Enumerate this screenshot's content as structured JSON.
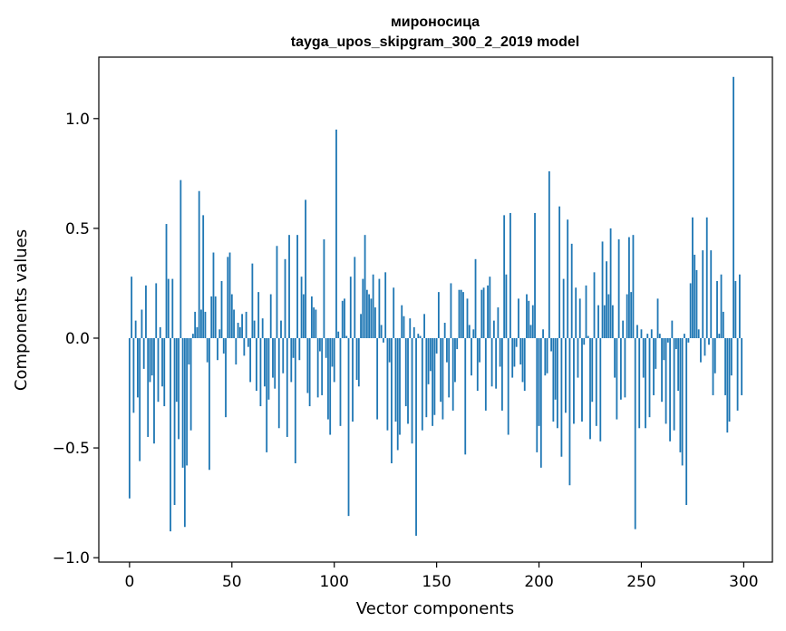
{
  "chart_data": {
    "type": "bar",
    "title": "мироносица",
    "subtitle": "tayga_upos_skipgram_300_2_2019 model",
    "xlabel": "Vector components",
    "ylabel": "Components values",
    "xlim": [
      -15,
      314
    ],
    "ylim": [
      -1.02,
      1.28
    ],
    "xticks": [
      0,
      50,
      100,
      150,
      200,
      250,
      300
    ],
    "yticks": [
      -1.0,
      -0.5,
      0.0,
      0.5,
      1.0
    ],
    "ytick_labels": [
      "−1.0",
      "−0.5",
      "0.0",
      "0.5",
      "1.0"
    ],
    "bar_color": "#1f77b4",
    "grid": false,
    "legend": "none",
    "x": [
      0,
      1,
      2,
      3,
      4,
      5,
      6,
      7,
      8,
      9,
      10,
      11,
      12,
      13,
      14,
      15,
      16,
      17,
      18,
      19,
      20,
      21,
      22,
      23,
      24,
      25,
      26,
      27,
      28,
      29,
      30,
      31,
      32,
      33,
      34,
      35,
      36,
      37,
      38,
      39,
      40,
      41,
      42,
      43,
      44,
      45,
      46,
      47,
      48,
      49,
      50,
      51,
      52,
      53,
      54,
      55,
      56,
      57,
      58,
      59,
      60,
      61,
      62,
      63,
      64,
      65,
      66,
      67,
      68,
      69,
      70,
      71,
      72,
      73,
      74,
      75,
      76,
      77,
      78,
      79,
      80,
      81,
      82,
      83,
      84,
      85,
      86,
      87,
      88,
      89,
      90,
      91,
      92,
      93,
      94,
      95,
      96,
      97,
      98,
      99,
      100,
      101,
      102,
      103,
      104,
      105,
      106,
      107,
      108,
      109,
      110,
      111,
      112,
      113,
      114,
      115,
      116,
      117,
      118,
      119,
      120,
      121,
      122,
      123,
      124,
      125,
      126,
      127,
      128,
      129,
      130,
      131,
      132,
      133,
      134,
      135,
      136,
      137,
      138,
      139,
      140,
      141,
      142,
      143,
      144,
      145,
      146,
      147,
      148,
      149,
      150,
      151,
      152,
      153,
      154,
      155,
      156,
      157,
      158,
      159,
      160,
      161,
      162,
      163,
      164,
      165,
      166,
      167,
      168,
      169,
      170,
      171,
      172,
      173,
      174,
      175,
      176,
      177,
      178,
      179,
      180,
      181,
      182,
      183,
      184,
      185,
      186,
      187,
      188,
      189,
      190,
      191,
      192,
      193,
      194,
      195,
      196,
      197,
      198,
      199,
      200,
      201,
      202,
      203,
      204,
      205,
      206,
      207,
      208,
      209,
      210,
      211,
      212,
      213,
      214,
      215,
      216,
      217,
      218,
      219,
      220,
      221,
      222,
      223,
      224,
      225,
      226,
      227,
      228,
      229,
      230,
      231,
      232,
      233,
      234,
      235,
      236,
      237,
      238,
      239,
      240,
      241,
      242,
      243,
      244,
      245,
      246,
      247,
      248,
      249,
      250,
      251,
      252,
      253,
      254,
      255,
      256,
      257,
      258,
      259,
      260,
      261,
      262,
      263,
      264,
      265,
      266,
      267,
      268,
      269,
      270,
      271,
      272,
      273,
      274,
      275,
      276,
      277,
      278,
      279,
      280,
      281,
      282,
      283,
      284,
      285,
      286,
      287,
      288,
      289,
      290,
      291,
      292,
      293,
      294,
      295,
      296,
      297,
      298,
      299
    ],
    "values": [
      -0.73,
      0.28,
      -0.34,
      0.08,
      -0.27,
      -0.56,
      0.13,
      -0.14,
      0.24,
      -0.45,
      -0.2,
      -0.17,
      -0.48,
      0.25,
      -0.29,
      0.05,
      -0.22,
      -0.31,
      0.52,
      0.27,
      -0.88,
      0.27,
      -0.76,
      -0.29,
      -0.46,
      0.72,
      -0.59,
      -0.86,
      -0.58,
      -0.12,
      -0.42,
      0.02,
      0.12,
      0.05,
      0.67,
      0.13,
      0.56,
      0.12,
      -0.11,
      -0.6,
      0.19,
      0.39,
      0.19,
      -0.1,
      0.04,
      0.26,
      -0.07,
      -0.36,
      0.37,
      0.39,
      0.2,
      0.13,
      -0.12,
      0.07,
      0.05,
      0.11,
      -0.08,
      0.12,
      -0.04,
      -0.2,
      0.34,
      0.08,
      -0.24,
      0.21,
      -0.31,
      0.09,
      -0.22,
      -0.52,
      -0.28,
      0.2,
      -0.18,
      -0.23,
      0.42,
      -0.41,
      0.08,
      -0.16,
      0.36,
      -0.45,
      0.47,
      -0.2,
      -0.09,
      -0.57,
      0.47,
      -0.1,
      0.28,
      0.2,
      0.63,
      -0.25,
      -0.31,
      0.19,
      0.14,
      0.13,
      -0.27,
      -0.06,
      -0.26,
      0.45,
      -0.09,
      -0.37,
      -0.44,
      -0.13,
      -0.2,
      0.95,
      0.03,
      -0.4,
      0.17,
      0.18,
      0.01,
      -0.81,
      0.28,
      -0.38,
      0.37,
      -0.19,
      -0.22,
      0.11,
      0.27,
      0.47,
      0.22,
      0.2,
      0.18,
      0.29,
      0.14,
      -0.37,
      0.27,
      0.06,
      -0.02,
      0.3,
      -0.42,
      -0.11,
      -0.57,
      0.23,
      -0.38,
      -0.51,
      -0.44,
      0.15,
      0.1,
      -0.31,
      -0.39,
      0.09,
      -0.48,
      0.05,
      -0.9,
      0.02,
      0.01,
      -0.42,
      0.11,
      -0.36,
      -0.21,
      -0.15,
      -0.4,
      -0.35,
      -0.07,
      0.21,
      -0.29,
      -0.37,
      0.07,
      -0.11,
      -0.27,
      0.25,
      -0.33,
      -0.2,
      -0.05,
      0.22,
      0.22,
      0.21,
      -0.53,
      0.18,
      0.06,
      -0.17,
      0.04,
      0.36,
      -0.24,
      -0.11,
      0.22,
      0.23,
      -0.33,
      0.24,
      0.28,
      -0.22,
      0.08,
      -0.23,
      0.14,
      -0.13,
      -0.33,
      0.56,
      0.29,
      -0.44,
      0.57,
      -0.18,
      -0.13,
      -0.04,
      0.18,
      -0.12,
      -0.2,
      -0.24,
      0.2,
      0.17,
      0.06,
      0.15,
      0.57,
      -0.52,
      -0.4,
      -0.59,
      0.04,
      -0.17,
      -0.16,
      0.76,
      -0.06,
      -0.38,
      -0.28,
      -0.41,
      0.6,
      -0.54,
      0.27,
      -0.34,
      0.54,
      -0.67,
      0.43,
      -0.39,
      0.23,
      -0.18,
      0.18,
      -0.38,
      -0.03,
      0.24,
      0.01,
      -0.46,
      -0.29,
      0.3,
      -0.4,
      0.15,
      -0.47,
      0.44,
      0.15,
      0.35,
      0.2,
      0.5,
      0.15,
      -0.18,
      -0.37,
      0.45,
      -0.28,
      0.08,
      -0.27,
      0.2,
      0.46,
      0.21,
      0.47,
      -0.87,
      0.06,
      -0.41,
      0.04,
      -0.18,
      -0.41,
      0.02,
      -0.36,
      0.04,
      -0.26,
      -0.14,
      0.18,
      0.02,
      -0.29,
      -0.1,
      -0.39,
      -0.02,
      -0.47,
      0.08,
      -0.42,
      -0.05,
      -0.24,
      -0.52,
      -0.58,
      0.02,
      -0.76,
      -0.02,
      0.25,
      0.55,
      0.38,
      0.31,
      0.04,
      -0.11,
      0.4,
      -0.08,
      0.55,
      -0.03,
      0.4,
      -0.26,
      -0.16,
      0.26,
      0.02,
      0.29,
      0.12,
      -0.26,
      -0.43,
      -0.38,
      -0.17,
      1.19,
      0.26,
      -0.33,
      0.29,
      -0.26
    ]
  }
}
